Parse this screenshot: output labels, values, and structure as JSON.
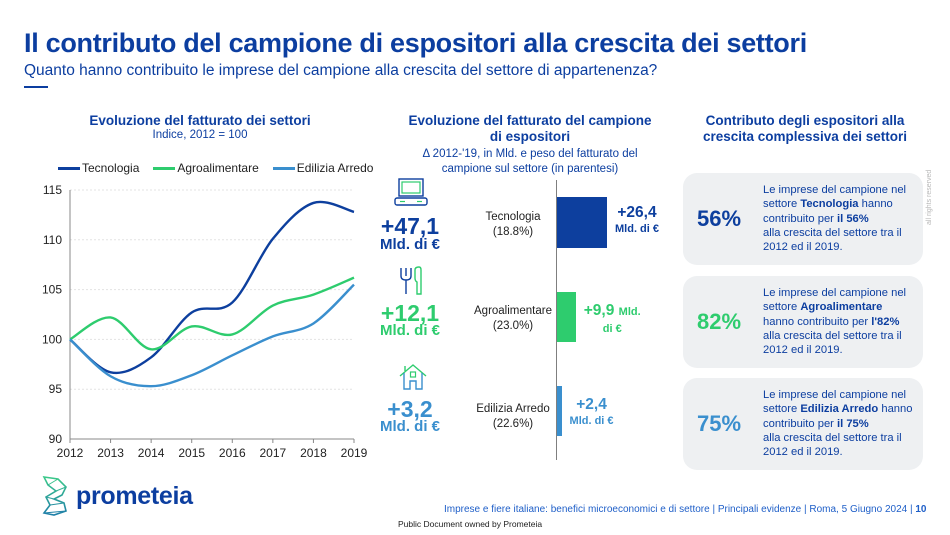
{
  "header": {
    "title": "Il contributo del campione di espositori alla crescita dei settori",
    "subtitle": "Quanto hanno contribuito le imprese del campione alla crescita del settore di appartenenza?"
  },
  "colors": {
    "primary": "#0c3ea0",
    "tecnologia": "#0d3f9e",
    "agroalimentare": "#2ecc6e",
    "edilizia": "#3a8fce"
  },
  "left_panel": {
    "title": "Evoluzione del fatturato dei settori",
    "subtitle": "Indice, 2012 = 100"
  },
  "chart_data": [
    {
      "type": "line",
      "title": "Evoluzione del fatturato dei settori",
      "subtitle": "Indice, 2012 = 100",
      "xlabel": "",
      "ylabel": "",
      "x": [
        "2012",
        "2013",
        "2014",
        "2015",
        "2016",
        "2017",
        "2018",
        "2019"
      ],
      "yticks": [
        "90",
        "95",
        "100",
        "105",
        "110",
        "115"
      ],
      "ylim": [
        90,
        115
      ],
      "grid": true,
      "legend": "top",
      "series": [
        {
          "name": "Tecnologia",
          "color": "#0d3f9e",
          "values": [
            100,
            96.7,
            98.2,
            102.7,
            103.7,
            110.1,
            113.7,
            112.8
          ]
        },
        {
          "name": "Agroalimentare",
          "color": "#2ecc6e",
          "values": [
            100,
            102.2,
            99.0,
            101.3,
            100.5,
            103.4,
            104.5,
            106.2
          ]
        },
        {
          "name": "Edilizia Arredo",
          "color": "#3a8fce",
          "values": [
            100,
            96.3,
            95.3,
            96.4,
            98.4,
            100.3,
            101.6,
            105.5
          ]
        }
      ]
    },
    {
      "type": "bar",
      "title": "Evoluzione del fatturato del campione di espositori",
      "subtitle": "Δ 2012-'19, in Mld. e peso del fatturato del campione sul settore (in parentesi)",
      "categories": [
        "Tecnologia",
        "Agroalimentare",
        "Edilizia Arredo"
      ],
      "values": [
        26.4,
        9.9,
        2.4
      ],
      "unit": "Mld. di €",
      "shares": [
        "18.8%",
        "23.0%",
        "22.6%"
      ],
      "sector_totals": [
        47.1,
        12.1,
        3.2
      ]
    }
  ],
  "middle_panel": {
    "title_line1": "Evoluzione del fatturato del campione",
    "title_line2": "di espositori",
    "subtitle_line1": "Δ 2012-'19, in Mld. e peso del fatturato del",
    "subtitle_line2": "campione sul settore (in parentesi)",
    "rows": [
      {
        "icon": "computer-icon",
        "total": "+47,1",
        "total_unit": "Mld. di €",
        "label": "Tecnologia",
        "share": "(18.8%)",
        "bar_value": 26.4,
        "bar_text": "+26,4",
        "bar_unit": "Mld. di €",
        "color": "#0d3f9e"
      },
      {
        "icon": "fork-knife-icon",
        "total": "+12,1",
        "total_unit": "Mld. di €",
        "label": "Agroalimentare",
        "share": "(23.0%)",
        "bar_value": 9.9,
        "bar_text": "+9,9",
        "bar_unit_a": "Mld.",
        "bar_unit_b": "di €",
        "color": "#2ecc6e"
      },
      {
        "icon": "house-icon",
        "total": "+3,2",
        "total_unit": "Mld. di €",
        "label": "Edilizia Arredo",
        "share": "(22.6%)",
        "bar_value": 2.4,
        "bar_text": "+2,4",
        "bar_unit": "Mld. di €",
        "color": "#3a8fce"
      }
    ]
  },
  "right_panel": {
    "title_line1": "Contributo degli espositori alla",
    "title_line2": "crescita complessiva dei settori",
    "cards": [
      {
        "pct": "56%",
        "l1": "Le imprese del campione nel",
        "l2a": "settore ",
        "l2b": "Tecnologia",
        "l2c": " hanno",
        "l3a": "contribuito per ",
        "l3b": "il 56%",
        "l4": "alla crescita del settore tra il",
        "l5": "2012 ed il 2019."
      },
      {
        "pct": "82%",
        "l1": "Le imprese del campione nel",
        "l2a": "settore ",
        "l2b": "Agroalimentare",
        "l3a": "hanno contribuito per ",
        "l3b": "l'82%",
        "l4": "alla crescita del settore tra il",
        "l5": "2012 ed il 2019."
      },
      {
        "pct": "75%",
        "l1": "Le imprese del campione nel",
        "l2a": "settore ",
        "l2b": "Edilizia Arredo",
        "l2c": " hanno",
        "l3a": "contribuito per ",
        "l3b": "il 75%",
        "l4": "alla crescita del settore tra il",
        "l5": "2012 ed il 2019."
      }
    ]
  },
  "watermark": "all rights reserved",
  "logo": {
    "text": "prometeia"
  },
  "footer": {
    "text": "Imprese e fiere italiane: benefici microeconomici e di settore | Principali evidenze | Roma, 5 Giugno 2024 | ",
    "page": "10",
    "public": "Public Document owned by Prometeia"
  }
}
